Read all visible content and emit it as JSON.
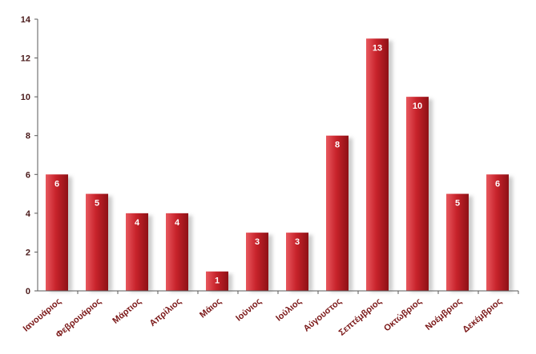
{
  "chart_data": {
    "type": "bar",
    "categories": [
      "Ιανουάριος",
      "Φεβρουάριος",
      "Μάρτιος",
      "Απρίλιος",
      "Μάιος",
      "Ιούνιος",
      "Ιούλιος",
      "Αύγουστος",
      "Σεπτέμβριος",
      "Οκτώβριος",
      "Νοέμβριος",
      "Δεκέμβριος"
    ],
    "values": [
      6,
      5,
      4,
      4,
      1,
      3,
      3,
      8,
      13,
      10,
      5,
      6
    ],
    "ylim": [
      0,
      14
    ],
    "yticks": [
      0,
      2,
      4,
      6,
      8,
      10,
      12,
      14
    ],
    "grid": false,
    "legend": "none",
    "colors": {
      "bar_light": "#e8585e",
      "bar_mid": "#c8232b",
      "bar_dark": "#8e1116",
      "shadow": "#b9b9b9",
      "category_text": "#7a1616",
      "axis": "#595959"
    }
  }
}
